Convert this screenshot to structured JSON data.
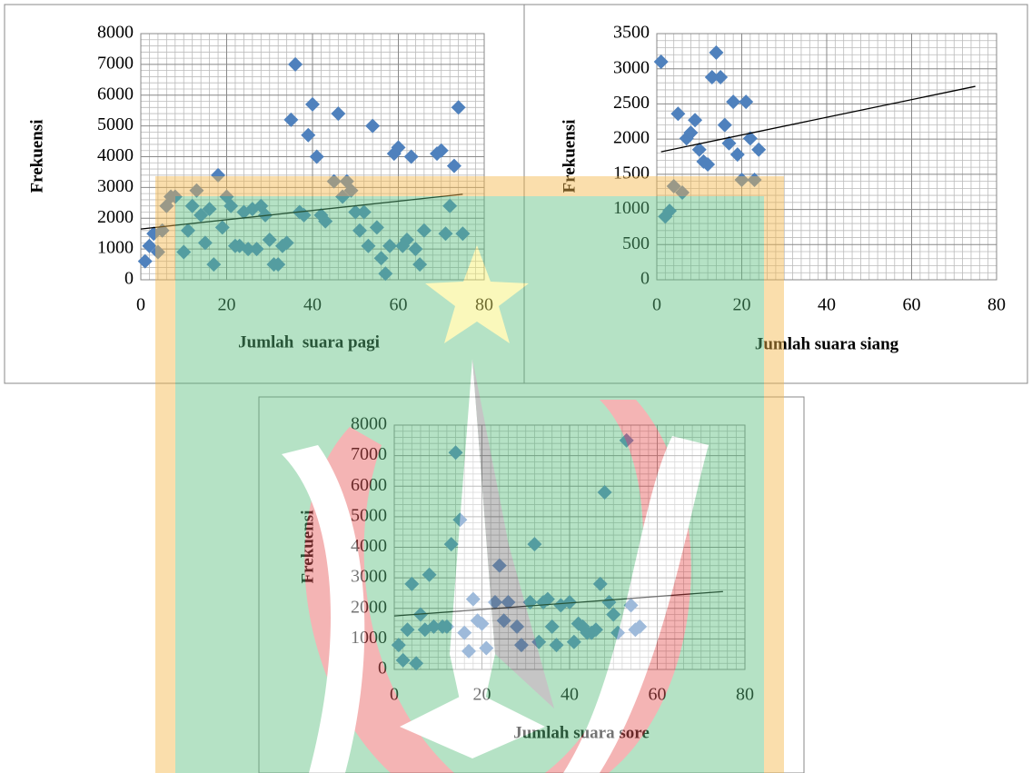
{
  "chart_data": [
    {
      "type": "scatter",
      "x_label": "Jumlah  suara pagi",
      "y_label": "Frekuensi",
      "color": "#4f81bd",
      "x": [
        1,
        2,
        3,
        4,
        5,
        6,
        7,
        8,
        10,
        11,
        12,
        13,
        14,
        15,
        16,
        17,
        18,
        19,
        20,
        21,
        22,
        23,
        24,
        25,
        26,
        27,
        28,
        29,
        30,
        31,
        32,
        33,
        34,
        35,
        36,
        37,
        38,
        39,
        40,
        41,
        42,
        43,
        45,
        46,
        47,
        48,
        49,
        50,
        51,
        52,
        53,
        54,
        55,
        56,
        57,
        58,
        59,
        60,
        61,
        62,
        63,
        64,
        65,
        66,
        69,
        70,
        71,
        72,
        73,
        74,
        75
      ],
      "y": [
        600,
        1100,
        1500,
        900,
        1600,
        2400,
        2700,
        2700,
        900,
        1600,
        2400,
        2900,
        2100,
        1200,
        2300,
        500,
        3400,
        1700,
        2700,
        2400,
        1100,
        1100,
        2200,
        1000,
        2300,
        1000,
        2400,
        2100,
        1300,
        500,
        500,
        1100,
        1200,
        5200,
        7000,
        2200,
        2100,
        4700,
        5700,
        4000,
        2100,
        1900,
        3200,
        5400,
        2700,
        3200,
        2900,
        2200,
        1600,
        2200,
        1100,
        5000,
        1700,
        700,
        200,
        1100,
        4100,
        4300,
        1100,
        1300,
        4000,
        1000,
        500,
        1600,
        4100,
        4200,
        1500,
        2400,
        3700,
        5600,
        1500
      ],
      "trendline": {
        "x": [
          0,
          75
        ],
        "y": [
          1650,
          2780
        ]
      },
      "xlim": [
        0,
        80
      ],
      "xticks": [
        0,
        20,
        40,
        60,
        80
      ],
      "ylim": [
        0,
        8000
      ],
      "yticks": [
        0,
        1000,
        2000,
        3000,
        4000,
        5000,
        6000,
        7000,
        8000
      ],
      "grid": true
    },
    {
      "type": "scatter",
      "x_label": "Jumlah suara siang",
      "y_label": "Frekuensi",
      "color": "#4f81bd",
      "x": [
        1,
        2,
        3,
        4,
        5,
        6,
        7,
        8,
        9,
        10,
        11,
        12,
        13,
        14,
        15,
        16,
        17,
        18,
        19,
        20,
        21,
        22,
        23,
        24
      ],
      "y": [
        3100,
        900,
        980,
        1330,
        2360,
        1240,
        2010,
        2090,
        2270,
        1850,
        1680,
        1640,
        2880,
        3230,
        2880,
        2200,
        1940,
        2530,
        1780,
        1420,
        2530,
        2010,
        1420,
        1850
      ],
      "trendline": {
        "x": [
          1,
          75
        ],
        "y": [
          1820,
          2750
        ]
      },
      "xlim": [
        0,
        80
      ],
      "xticks": [
        0,
        20,
        40,
        60,
        80
      ],
      "ylim": [
        0,
        3500
      ],
      "yticks": [
        0,
        500,
        1000,
        1500,
        2000,
        2500,
        3000,
        3500
      ],
      "grid": true
    },
    {
      "type": "scatter",
      "x_label": "Jumlah suara sore",
      "y_label": "Frekuensi",
      "color": "#4f81bd",
      "x": [
        1,
        2,
        3,
        4,
        5,
        6,
        7,
        8,
        9,
        11,
        12,
        13,
        14,
        15,
        16,
        17,
        18,
        19,
        20,
        21,
        23,
        24,
        25,
        26,
        28,
        29,
        31,
        32,
        33,
        34,
        35,
        36,
        37,
        38,
        40,
        41,
        42,
        43,
        44,
        45,
        46,
        47,
        48,
        49,
        50,
        51,
        53,
        54,
        55,
        56
      ],
      "y": [
        800,
        300,
        1300,
        2800,
        200,
        1800,
        1300,
        3100,
        1400,
        1400,
        1400,
        4100,
        7100,
        4900,
        1200,
        600,
        2300,
        1600,
        1500,
        700,
        2200,
        3400,
        1600,
        2200,
        1400,
        800,
        2200,
        4100,
        900,
        2200,
        2300,
        1400,
        800,
        2100,
        2200,
        900,
        1500,
        1400,
        1200,
        1200,
        1300,
        2800,
        5800,
        2200,
        1800,
        1200,
        7500,
        2100,
        1300,
        1400
      ],
      "trendline": {
        "x": [
          0,
          75
        ],
        "y": [
          1750,
          2550
        ]
      },
      "xlim": [
        0,
        80
      ],
      "xticks": [
        0,
        20,
        40,
        60,
        80
      ],
      "ylim": [
        0,
        8000
      ],
      "yticks": [
        0,
        1000,
        2000,
        3000,
        4000,
        5000,
        6000,
        7000,
        8000
      ],
      "grid": true
    }
  ]
}
